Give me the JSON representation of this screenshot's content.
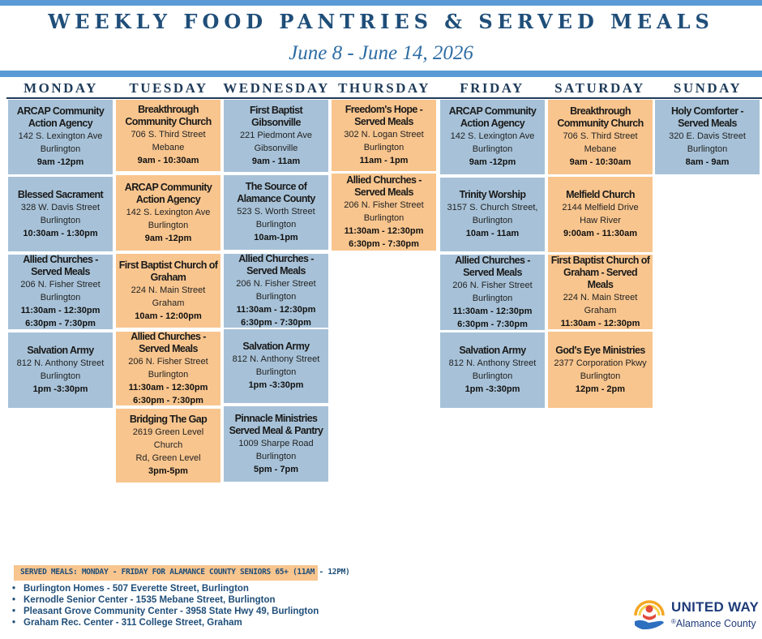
{
  "header": {
    "title": "WEEKLY FOOD PANTRIES & SERVED MEALS",
    "dates": "June 8 - June 14, 2026"
  },
  "days": [
    {
      "label": "MONDAY",
      "entries": [
        {
          "name": "ARCAP Community Action Agency",
          "lines": [
            "142 S. Lexington Ave",
            "Burlington"
          ],
          "times": [
            "9am -12pm"
          ]
        },
        {
          "name": "Blessed Sacrament",
          "lines": [
            "328 W. Davis Street",
            "Burlington"
          ],
          "times": [
            "10:30am - 1:30pm"
          ]
        },
        {
          "name": "Allied Churches - Served Meals",
          "lines": [
            "206 N. Fisher Street",
            "Burlington"
          ],
          "times": [
            "11:30am - 12:30pm",
            "6:30pm - 7:30pm"
          ]
        },
        {
          "name": "Salvation Army",
          "lines": [
            "812 N. Anthony Street",
            "Burlington"
          ],
          "times": [
            "1pm -3:30pm"
          ]
        }
      ]
    },
    {
      "label": "TUESDAY",
      "entries": [
        {
          "name": "Breakthrough Community Church",
          "lines": [
            "706 S. Third Street",
            "Mebane"
          ],
          "times": [
            "9am - 10:30am"
          ]
        },
        {
          "name": "ARCAP Community Action Agency",
          "lines": [
            "142 S. Lexington Ave",
            "Burlington"
          ],
          "times": [
            "9am -12pm"
          ]
        },
        {
          "name": "First Baptist Church of Graham",
          "lines": [
            "224 N. Main Street",
            "Graham"
          ],
          "times": [
            "10am - 12:00pm"
          ]
        },
        {
          "name": "Allied Churches - Served Meals",
          "lines": [
            "206 N. Fisher Street",
            "Burlington"
          ],
          "times": [
            "11:30am - 12:30pm",
            "6:30pm - 7:30pm"
          ]
        },
        {
          "name": "Bridging The Gap",
          "lines": [
            "2619 Green Level Church",
            "Rd, Green Level"
          ],
          "times": [
            "3pm-5pm"
          ]
        }
      ]
    },
    {
      "label": "WEDNESDAY",
      "entries": [
        {
          "name": "First Baptist Gibsonville",
          "lines": [
            "221 Piedmont Ave",
            "Gibsonville"
          ],
          "times": [
            "9am - 11am"
          ]
        },
        {
          "name": "The Source of Alamance County",
          "lines": [
            "523 S. Worth Street",
            "Burlington"
          ],
          "times": [
            "10am-1pm"
          ]
        },
        {
          "name": "Allied Churches - Served Meals",
          "lines": [
            "206 N. Fisher Street",
            "Burlington"
          ],
          "times": [
            "11:30am - 12:30pm",
            "6:30pm - 7:30pm"
          ]
        },
        {
          "name": "Salvation Army",
          "lines": [
            "812 N. Anthony Street",
            "Burlington"
          ],
          "times": [
            "1pm -3:30pm"
          ]
        },
        {
          "name": "Pinnacle Ministries Served Meal & Pantry",
          "lines": [
            "1009 Sharpe Road",
            "Burlington"
          ],
          "times": [
            "5pm - 7pm"
          ]
        }
      ]
    },
    {
      "label": "THURSDAY",
      "entries": [
        {
          "name": "Freedom's Hope - Served Meals",
          "lines": [
            "302 N. Logan Street",
            "Burlington"
          ],
          "times": [
            "11am - 1pm"
          ]
        },
        {
          "name": "Allied Churches - Served Meals",
          "lines": [
            "206 N. Fisher Street",
            "Burlington"
          ],
          "times": [
            "11:30am - 12:30pm",
            "6:30pm - 7:30pm"
          ]
        }
      ]
    },
    {
      "label": "FRIDAY",
      "entries": [
        {
          "name": "ARCAP Community Action Agency",
          "lines": [
            "142 S. Lexington Ave",
            "Burlington"
          ],
          "times": [
            "9am -12pm"
          ]
        },
        {
          "name": "Trinity Worship",
          "lines": [
            "3157 S. Church Street,",
            "Burlington"
          ],
          "times": [
            "10am - 11am"
          ]
        },
        {
          "name": "Allied Churches - Served Meals",
          "lines": [
            "206 N. Fisher Street",
            "Burlington"
          ],
          "times": [
            "11:30am - 12:30pm",
            "6:30pm - 7:30pm"
          ]
        },
        {
          "name": "Salvation Army",
          "lines": [
            "812 N. Anthony Street",
            "Burlington"
          ],
          "times": [
            "1pm -3:30pm"
          ]
        }
      ]
    },
    {
      "label": "SATURDAY",
      "entries": [
        {
          "name": "Breakthrough Community Church",
          "lines": [
            "706 S. Third Street",
            "Mebane"
          ],
          "times": [
            "9am - 10:30am"
          ]
        },
        {
          "name": "Melfield Church",
          "lines": [
            "2144 Melfield Drive",
            "Haw River"
          ],
          "times": [
            "9:00am - 11:30am"
          ]
        },
        {
          "name": "First Baptist Church of Graham - Served Meals",
          "lines": [
            "224 N. Main Street",
            "Graham"
          ],
          "times": [
            "11:30am - 12:30pm"
          ]
        },
        {
          "name": "God's Eye Ministries",
          "lines": [
            "2377 Corporation Pkwy",
            "Burlington"
          ],
          "times": [
            "12pm - 2pm"
          ]
        }
      ]
    },
    {
      "label": "SUNDAY",
      "entries": [
        {
          "name": "Holy Comforter - Served Meals",
          "lines": [
            "320 E. Davis Street",
            "Burlington"
          ],
          "times": [
            "8am - 9am"
          ]
        }
      ]
    }
  ],
  "served_meals": {
    "banner": "SERVED MEALS:  MONDAY - FRIDAY FOR ALAMANCE COUNTY SENIORS 65+ (11AM - 12PM)",
    "bullet": "•",
    "sites": [
      "Burlington Homes - 507 Everette Street, Burlington",
      "Kernodle Senior Center - 1535 Mebane Street, Burlington",
      "Pleasant Grove Community Center - 3958 State Hwy 49, Burlington",
      "Graham Rec. Center - 311 College Street, Graham"
    ]
  },
  "logo": {
    "line1": "UNITED WAY",
    "line2": "Alamance County",
    "registered": "®",
    "colors": {
      "navy": "#1f3b7a",
      "orange": "#f5a623",
      "yellow": "#f8d24a",
      "red": "#e24a3b",
      "blue": "#2f6fbf"
    }
  },
  "colors": {
    "card_blue": "#a7c2d8",
    "card_orange": "#f8c58e",
    "title_navy": "#1f4e79",
    "bar_blue": "#5b9bd5"
  }
}
